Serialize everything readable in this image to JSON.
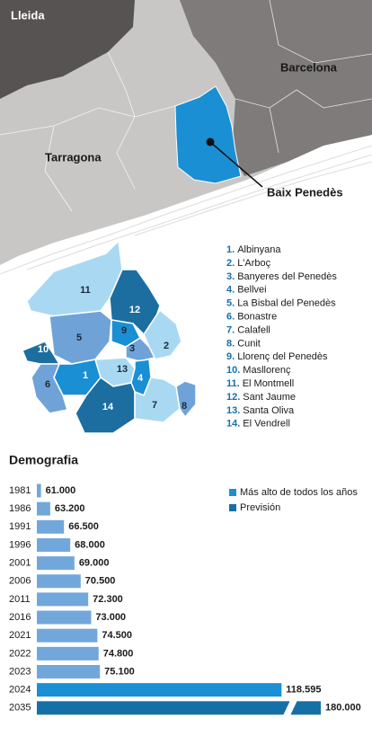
{
  "map": {
    "regions": {
      "lleida": "Lleida",
      "barcelona": "Barcelona",
      "tarragona": "Tarragona"
    },
    "highlight": "Baix Penedès",
    "municipalities": [
      {
        "map_label": "1",
        "list_label": "1.",
        "name": "Albinyana"
      },
      {
        "map_label": "2",
        "list_label": "2.",
        "name": "L'Arboç"
      },
      {
        "map_label": "3",
        "list_label": "3.",
        "name": "Banyeres del Penedès"
      },
      {
        "map_label": "4",
        "list_label": "4.",
        "name": "Bellvei"
      },
      {
        "map_label": "5",
        "list_label": "5.",
        "name": "La Bisbal del Penedès"
      },
      {
        "map_label": "6",
        "list_label": "6.",
        "name": "Bonastre"
      },
      {
        "map_label": "7",
        "list_label": "7.",
        "name": "Calafell"
      },
      {
        "map_label": "8",
        "list_label": "8.",
        "name": "Cunit"
      },
      {
        "map_label": "9",
        "list_label": "9.",
        "name": "Llorenç del Penedès"
      },
      {
        "map_label": "10",
        "list_label": "10.",
        "name": "Masllorenç"
      },
      {
        "map_label": "11",
        "list_label": "11.",
        "name": "El Montmell"
      },
      {
        "map_label": "12",
        "list_label": "12.",
        "name": "Sant Jaume"
      },
      {
        "map_label": "13",
        "list_label": "13.",
        "name": "Santa Oliva"
      },
      {
        "map_label": "14",
        "list_label": "14.",
        "name": "El Vendrell"
      }
    ]
  },
  "chart_data": {
    "type": "bar",
    "orientation": "horizontal",
    "title": "Demografia",
    "categories": [
      "1981",
      "1986",
      "1991",
      "1996",
      "2001",
      "2006",
      "2011",
      "2016",
      "2021",
      "2022",
      "2023",
      "2024",
      "2035"
    ],
    "values": [
      61000,
      63200,
      66500,
      68000,
      69000,
      70500,
      72300,
      73000,
      74500,
      74800,
      75100,
      118595,
      180000
    ],
    "value_labels": [
      "61.000",
      "63.200",
      "66.500",
      "68.000",
      "69.000",
      "70.500",
      "72.300",
      "73.000",
      "74.500",
      "74.800",
      "75.100",
      "118.595",
      "180.000"
    ],
    "bar_colors": [
      "#72a7dc",
      "#72a7dc",
      "#72a7dc",
      "#72a7dc",
      "#72a7dc",
      "#72a7dc",
      "#72a7dc",
      "#72a7dc",
      "#72a7dc",
      "#72a7dc",
      "#72a7dc",
      "#1a8fd3",
      "#1670a8"
    ],
    "legend": [
      {
        "name": "Más alto de todos los años",
        "color": "#1a8fd3"
      },
      {
        "name": "Previsión",
        "color": "#1670a8"
      }
    ],
    "xlim": [
      60000,
      128000
    ],
    "axis_break": true
  }
}
